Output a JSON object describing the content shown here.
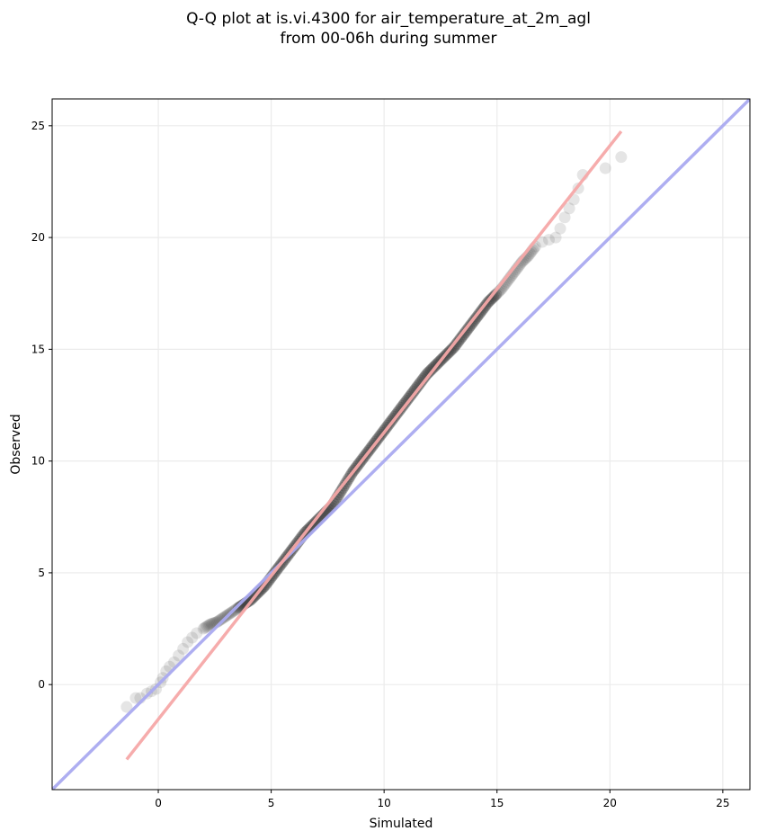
{
  "chart_data": {
    "type": "scatter",
    "title": "Q-Q plot at is.vi.4300 for air_temperature_at_2m_agl",
    "subtitle": "from 00-06h during summer",
    "xlabel": "Simulated",
    "ylabel": "Observed",
    "xlim": [
      -4.7,
      26.2
    ],
    "ylim": [
      -4.7,
      26.2
    ],
    "xticks": [
      0,
      5,
      10,
      15,
      20,
      25
    ],
    "yticks": [
      0,
      5,
      10,
      15,
      20,
      25
    ],
    "grid": true,
    "colors": {
      "points": "#333333",
      "identity_line": "#aaaaf0",
      "fit_line": "#f5a8a8",
      "axes": "#000000",
      "grid": "#ebebeb"
    },
    "quantiles": {
      "x": [
        -1.4,
        -1.0,
        -0.8,
        -0.5,
        -0.3,
        -0.1,
        0.1,
        0.2,
        0.35,
        0.5,
        0.7,
        0.9,
        1.1,
        1.3,
        1.5,
        1.7,
        2.0,
        2.3,
        2.6,
        2.9,
        3.2,
        3.5,
        3.8,
        4.1,
        4.4,
        4.7,
        5.0,
        5.3,
        5.6,
        5.9,
        6.2,
        6.5,
        6.8,
        7.1,
        7.4,
        7.7,
        8.0,
        8.3,
        8.6,
        8.9,
        9.2,
        9.5,
        9.8,
        10.1,
        10.4,
        10.7,
        11.0,
        11.3,
        11.6,
        11.9,
        12.2,
        12.5,
        12.8,
        13.1,
        13.4,
        13.7,
        14.0,
        14.3,
        14.6,
        14.9,
        15.2,
        15.5,
        15.8,
        16.1,
        16.4,
        16.7,
        17.0,
        17.3,
        17.6,
        17.8,
        18.0,
        18.2,
        18.4,
        18.6,
        18.8,
        19.8,
        20.5
      ],
      "y": [
        -1.0,
        -0.6,
        -0.6,
        -0.4,
        -0.3,
        -0.2,
        0.1,
        0.3,
        0.6,
        0.8,
        1.0,
        1.3,
        1.6,
        1.9,
        2.1,
        2.3,
        2.5,
        2.7,
        2.8,
        3.0,
        3.2,
        3.4,
        3.6,
        3.8,
        4.1,
        4.4,
        4.8,
        5.2,
        5.6,
        6.0,
        6.4,
        6.8,
        7.1,
        7.4,
        7.7,
        8.0,
        8.5,
        9.0,
        9.5,
        9.9,
        10.3,
        10.7,
        11.1,
        11.5,
        11.9,
        12.3,
        12.7,
        13.1,
        13.5,
        13.9,
        14.2,
        14.5,
        14.8,
        15.1,
        15.5,
        15.9,
        16.3,
        16.7,
        17.1,
        17.4,
        17.7,
        18.1,
        18.5,
        18.9,
        19.2,
        19.6,
        19.8,
        19.9,
        20.0,
        20.4,
        20.9,
        21.3,
        21.7,
        22.2,
        22.8,
        23.1,
        23.6
      ]
    },
    "fit_line": {
      "x": [
        -1.4,
        20.5
      ],
      "y": [
        -3.35,
        24.75
      ]
    },
    "identity_line": {
      "x": [
        -4.7,
        26.2
      ],
      "y": [
        -4.7,
        26.2
      ]
    }
  }
}
